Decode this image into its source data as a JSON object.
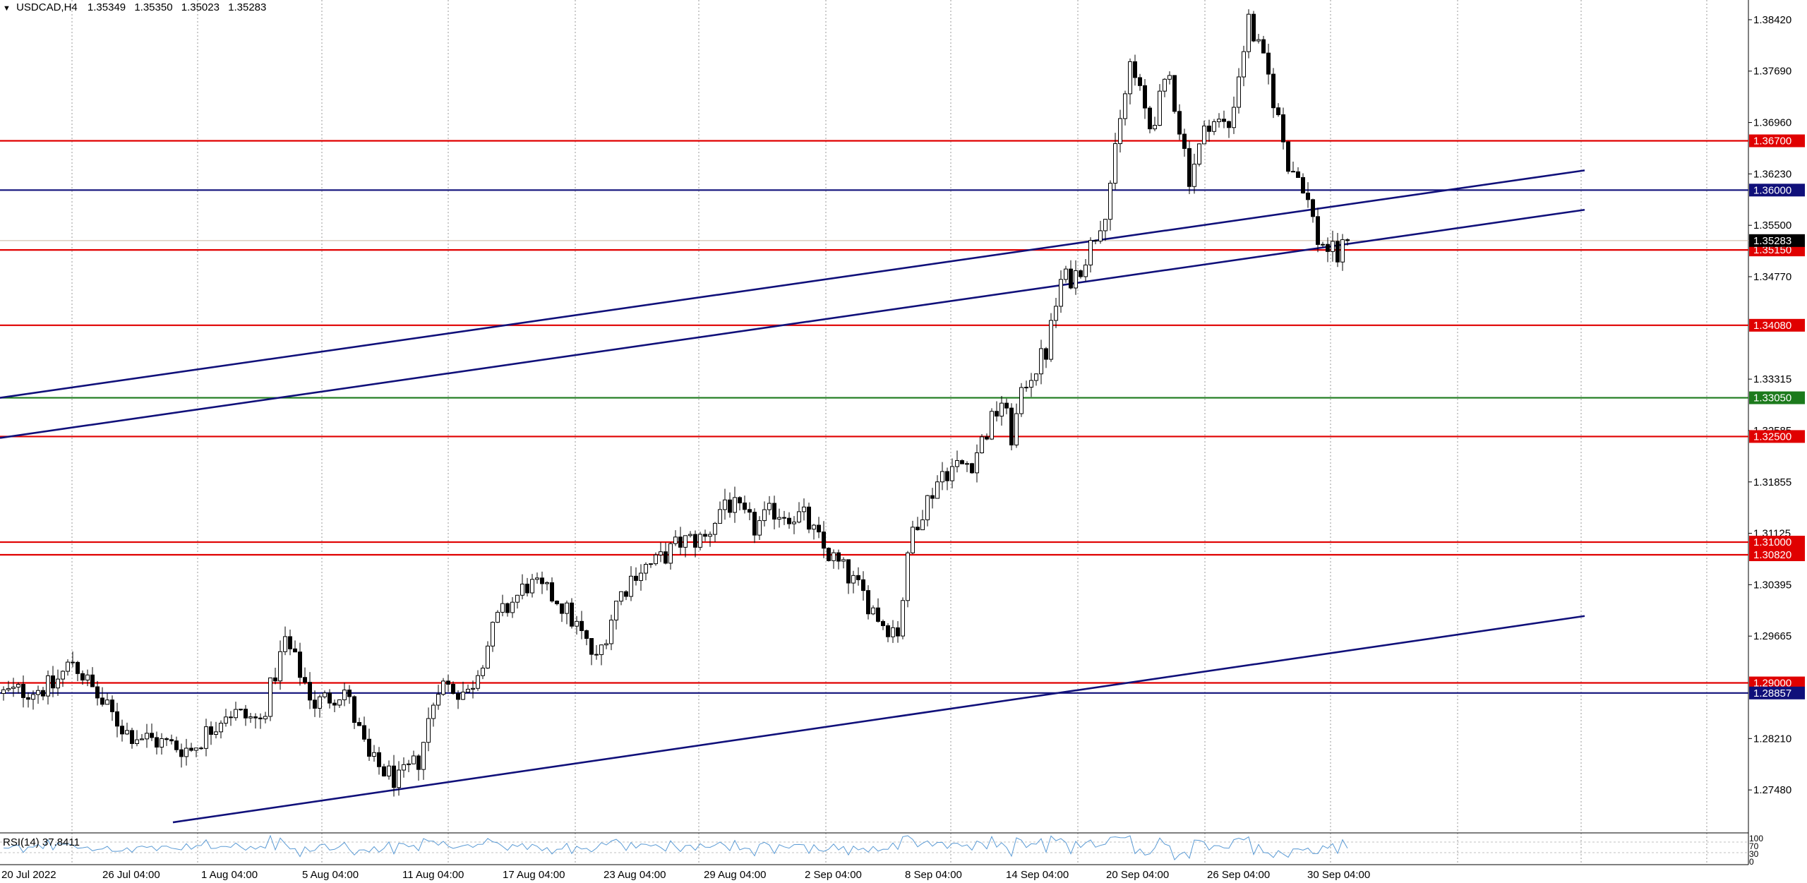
{
  "header": {
    "symbol": "USDCAD,H4",
    "open": "1.35349",
    "high": "1.35350",
    "low": "1.35023",
    "close": "1.35283"
  },
  "rsi": {
    "label": "RSI(14) 37.8411",
    "ticks": [
      "100",
      "70",
      "30",
      "0"
    ]
  },
  "colors": {
    "background": "#ffffff",
    "grid": "#9a9a9a",
    "support_resistance": "#e00000",
    "key_level": "#10107a",
    "green_level": "#1c7a1c",
    "trendline": "#10107a",
    "price_tag_bg": "#000000"
  },
  "chart_data": {
    "type": "candlestick",
    "symbol": "USDCAD",
    "timeframe": "H4",
    "ylim": [
      1.269,
      1.387
    ],
    "y_ticks": [
      "1.38420",
      "1.37690",
      "1.36960",
      "1.36230",
      "1.35500",
      "1.34770",
      "1.33315",
      "1.32585",
      "1.31855",
      "1.31125",
      "1.30395",
      "1.29665",
      "1.28210",
      "1.27480"
    ],
    "x_ticks": [
      "20 Jul 2022",
      "26 Jul 04:00",
      "1 Aug 04:00",
      "5 Aug 04:00",
      "11 Aug 04:00",
      "17 Aug 04:00",
      "23 Aug 04:00",
      "29 Aug 04:00",
      "2 Sep 04:00",
      "8 Sep 04:00",
      "14 Sep 04:00",
      "20 Sep 04:00",
      "26 Sep 04:00",
      "30 Sep 04:00"
    ],
    "grid_lines_at": [
      "26 Jul 04:00",
      "1 Aug 04:00",
      "5 Aug 04:00",
      "11 Aug 04:00",
      "17 Aug 04:00",
      "23 Aug 04:00",
      "29 Aug 04:00",
      "2 Sep 04:00",
      "8 Sep 04:00",
      "14 Sep 04:00",
      "20 Sep 04:00",
      "26 Sep 04:00",
      "30 Sep 04:00",
      "future-1"
    ],
    "bid_price": "1.35283",
    "horizontal_levels": [
      {
        "price": 1.367,
        "label": "1.36700",
        "color": "red"
      },
      {
        "price": 1.36,
        "label": "1.36000",
        "color": "navy"
      },
      {
        "price": 1.3515,
        "label": "1.35150",
        "color": "red"
      },
      {
        "price": 1.3408,
        "label": "1.34080",
        "color": "red"
      },
      {
        "price": 1.3305,
        "label": "1.33050",
        "color": "green"
      },
      {
        "price": 1.325,
        "label": "1.32500",
        "color": "red"
      },
      {
        "price": 1.31,
        "label": "1.31000",
        "color": "red"
      },
      {
        "price": 1.3082,
        "label": "1.30820",
        "color": "red"
      },
      {
        "price": 1.29,
        "label": "1.29000",
        "color": "red"
      },
      {
        "price": 1.28857,
        "label": "1.28857",
        "color": "navy"
      }
    ],
    "trendlines": [
      {
        "from": {
          "bar": 0,
          "price": 1.3305
        },
        "to": {
          "bar": 320,
          "price": 1.3628
        }
      },
      {
        "from": {
          "bar": 0,
          "price": 1.3248
        },
        "to": {
          "bar": 320,
          "price": 1.3572
        }
      },
      {
        "from": {
          "bar": 35,
          "price": 1.2702
        },
        "to": {
          "bar": 320,
          "price": 1.2995
        }
      }
    ],
    "price_path": [
      [
        0,
        1.2885
      ],
      [
        10,
        1.2895
      ],
      [
        14,
        1.2932
      ],
      [
        20,
        1.287
      ],
      [
        25,
        1.283
      ],
      [
        32,
        1.2815
      ],
      [
        38,
        1.2805
      ],
      [
        45,
        1.286
      ],
      [
        52,
        1.2845
      ],
      [
        57,
        1.296
      ],
      [
        63,
        1.287
      ],
      [
        69,
        1.289
      ],
      [
        74,
        1.279
      ],
      [
        80,
        1.276
      ],
      [
        84,
        1.279
      ],
      [
        88,
        1.29
      ],
      [
        94,
        1.2885
      ],
      [
        100,
        1.299
      ],
      [
        106,
        1.304
      ],
      [
        112,
        1.302
      ],
      [
        116,
        1.298
      ],
      [
        120,
        1.293
      ],
      [
        124,
        1.3015
      ],
      [
        128,
        1.306
      ],
      [
        132,
        1.307
      ],
      [
        137,
        1.31
      ],
      [
        142,
        1.3105
      ],
      [
        146,
        1.316
      ],
      [
        152,
        1.312
      ],
      [
        156,
        1.3145
      ],
      [
        162,
        1.3135
      ],
      [
        166,
        1.309
      ],
      [
        170,
        1.306
      ],
      [
        174,
        1.3025
      ],
      [
        178,
        1.2985
      ],
      [
        181,
        1.2975
      ],
      [
        184,
        1.312
      ],
      [
        190,
        1.32
      ],
      [
        196,
        1.3215
      ],
      [
        202,
        1.33
      ],
      [
        204,
        1.325
      ],
      [
        207,
        1.333
      ],
      [
        211,
        1.337
      ],
      [
        214,
        1.347
      ],
      [
        217,
        1.348
      ],
      [
        220,
        1.352
      ],
      [
        223,
        1.3575
      ],
      [
        225,
        1.365
      ],
      [
        228,
        1.378
      ],
      [
        232,
        1.369
      ],
      [
        236,
        1.376
      ],
      [
        240,
        1.362
      ],
      [
        244,
        1.37
      ],
      [
        248,
        1.369
      ],
      [
        252,
        1.384
      ],
      [
        256,
        1.376
      ],
      [
        260,
        1.364
      ],
      [
        263,
        1.361
      ],
      [
        266,
        1.353
      ],
      [
        270,
        1.3505
      ],
      [
        272,
        1.35283
      ]
    ]
  }
}
